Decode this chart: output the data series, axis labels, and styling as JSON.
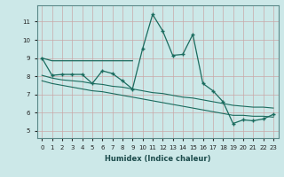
{
  "xlabel": "Humidex (Indice chaleur)",
  "bg_color": "#cce8e8",
  "grid_color": "#b0d4d4",
  "line_color": "#1a6b5e",
  "xlim": [
    -0.5,
    23.5
  ],
  "ylim": [
    4.6,
    11.9
  ],
  "yticks": [
    5,
    6,
    7,
    8,
    9,
    10,
    11
  ],
  "xticks": [
    0,
    1,
    2,
    3,
    4,
    5,
    6,
    7,
    8,
    9,
    10,
    11,
    12,
    13,
    14,
    15,
    16,
    17,
    18,
    19,
    20,
    21,
    22,
    23
  ],
  "flat_line": {
    "x": [
      0,
      1,
      2,
      3,
      4,
      5,
      6,
      7,
      8,
      9
    ],
    "y": [
      9.0,
      8.85,
      8.85,
      8.85,
      8.85,
      8.85,
      8.85,
      8.85,
      8.85,
      8.85
    ]
  },
  "upper_band": {
    "x": [
      0,
      1,
      2,
      3,
      4,
      5,
      6,
      7,
      8,
      9,
      10,
      11,
      12,
      13,
      14,
      15,
      16,
      17,
      18,
      19,
      20,
      21,
      22,
      23
    ],
    "y": [
      8.05,
      7.9,
      7.8,
      7.75,
      7.7,
      7.6,
      7.55,
      7.45,
      7.4,
      7.3,
      7.2,
      7.1,
      7.05,
      6.95,
      6.85,
      6.8,
      6.7,
      6.6,
      6.5,
      6.4,
      6.35,
      6.3,
      6.3,
      6.25
    ]
  },
  "lower_band": {
    "x": [
      0,
      1,
      2,
      3,
      4,
      5,
      6,
      7,
      8,
      9,
      10,
      11,
      12,
      13,
      14,
      15,
      16,
      17,
      18,
      19,
      20,
      21,
      22,
      23
    ],
    "y": [
      7.75,
      7.6,
      7.5,
      7.4,
      7.3,
      7.2,
      7.15,
      7.05,
      6.95,
      6.85,
      6.75,
      6.65,
      6.55,
      6.45,
      6.35,
      6.25,
      6.15,
      6.05,
      5.95,
      5.85,
      5.85,
      5.8,
      5.8,
      5.75
    ]
  },
  "marker_line": {
    "x": [
      0,
      1,
      2,
      3,
      4,
      5,
      6,
      7,
      8,
      9,
      10,
      11,
      12,
      13,
      14,
      15,
      16,
      17,
      18,
      19,
      20,
      21,
      22,
      23
    ],
    "y": [
      9.0,
      8.05,
      8.1,
      8.1,
      8.1,
      7.6,
      8.3,
      8.15,
      7.75,
      7.3,
      9.5,
      11.4,
      10.5,
      9.15,
      9.2,
      10.3,
      7.6,
      7.2,
      6.6,
      5.4,
      5.6,
      5.55,
      5.65,
      5.9
    ]
  }
}
